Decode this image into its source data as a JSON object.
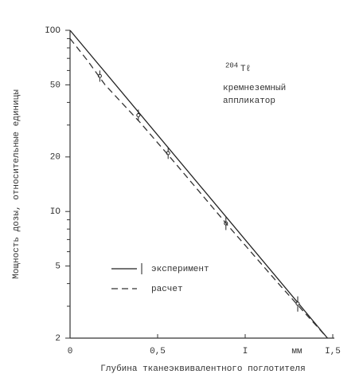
{
  "chart_data": {
    "type": "line",
    "x_label": "Глубина тканеэквивалентного поглотителя",
    "y_label": "Мощность дозы, относительные единицы",
    "x_unit": "мм",
    "annotation_isotope_mass": "204",
    "annotation_isotope": "Tℓ",
    "annotation_lines": [
      "кремнеземный",
      "аппликатор"
    ],
    "log_y": true,
    "xlim": [
      0,
      1.5
    ],
    "ylim": [
      2,
      100
    ],
    "xticks": [
      0,
      {
        "value": 0.5,
        "label": "0,5"
      },
      {
        "value": 1,
        "label": "I"
      },
      {
        "value": 1.5,
        "label": "I,5"
      }
    ],
    "yticks": [
      {
        "value": 100,
        "label": "IOO"
      },
      50,
      20,
      {
        "value": 10,
        "label": "IO"
      },
      5,
      2
    ],
    "yminorticks": [
      3,
      4,
      6,
      7,
      8,
      9,
      30,
      40,
      60,
      70,
      80,
      90
    ],
    "series": [
      {
        "name": "эксперимент",
        "color": "#222",
        "dash": false,
        "x": [
          0,
          1.47
        ],
        "values": [
          100,
          2
        ],
        "points": {
          "x": [
            0.17,
            0.39,
            0.56,
            0.89,
            1.3
          ],
          "values": [
            56,
            34,
            21,
            8.6,
            3.1
          ],
          "errors": [
            4,
            2.5,
            1.5,
            0.7,
            0.3
          ]
        }
      },
      {
        "name": "расчет",
        "color": "#333",
        "dash": true,
        "x": [
          0,
          0.1,
          0.2,
          0.4,
          0.6,
          0.9,
          1.2,
          1.47
        ],
        "values": [
          90,
          68,
          50,
          31,
          18.5,
          8.4,
          3.9,
          2
        ]
      }
    ]
  }
}
